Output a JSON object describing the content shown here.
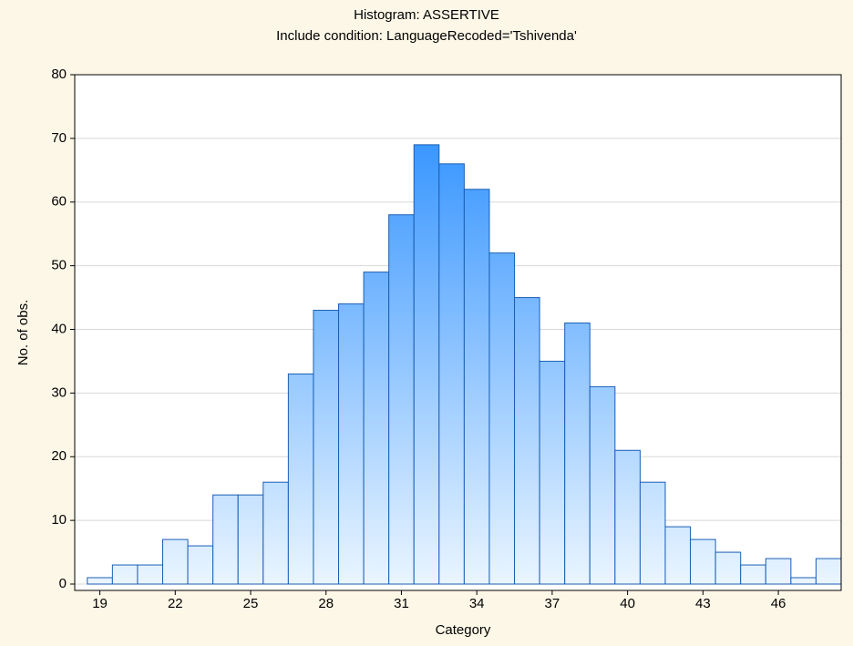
{
  "chart_data": {
    "type": "histogram",
    "title": "Histogram: ASSERTIVE",
    "subtitle": "Include condition: LanguageRecoded='Tshivenda'",
    "xlabel": "Category",
    "ylabel": "No. of obs.",
    "bins": [
      18.5,
      19.5,
      20.5,
      21.5,
      22.5,
      23.5,
      24.5,
      25.5,
      26.5,
      27.5,
      28.5,
      29.5,
      30.5,
      31.5,
      32.5,
      33.5,
      34.5,
      35.5,
      36.5,
      37.5,
      38.5,
      39.5,
      40.5,
      41.5,
      42.5,
      43.5,
      44.5,
      45.5,
      46.5,
      47.5,
      48.5
    ],
    "counts": [
      1,
      3,
      3,
      7,
      6,
      14,
      14,
      16,
      33,
      43,
      44,
      49,
      58,
      69,
      66,
      62,
      52,
      45,
      35,
      41,
      31,
      21,
      16,
      9,
      7,
      5,
      3,
      4,
      1,
      4
    ],
    "color": "#1e88ff",
    "xlim": [
      18,
      48.5
    ],
    "xticks": [
      19,
      22,
      25,
      28,
      31,
      34,
      37,
      40,
      43,
      46
    ],
    "ylim": [
      -1,
      80
    ],
    "yticks": [
      0,
      10,
      20,
      30,
      40,
      50,
      60,
      70,
      80
    ],
    "grid": true
  }
}
